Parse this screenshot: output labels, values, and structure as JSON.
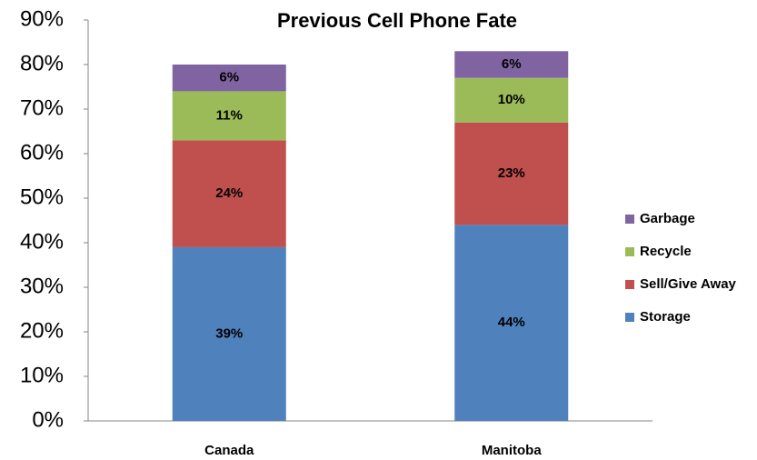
{
  "chart_data": {
    "type": "stacked-bar",
    "title": "Previous Cell Phone Fate",
    "categories": [
      "Canada",
      "Manitoba"
    ],
    "series": [
      {
        "name": "Storage",
        "color": "#4f81bd",
        "values": [
          39,
          44
        ],
        "value_labels": [
          "39%",
          "44%"
        ]
      },
      {
        "name": "Sell/Give Away",
        "color": "#c0504d",
        "values": [
          24,
          23
        ],
        "value_labels": [
          "24%",
          "23%"
        ]
      },
      {
        "name": "Recycle",
        "color": "#9bbb59",
        "values": [
          11,
          10
        ],
        "value_labels": [
          "11%",
          "10%"
        ]
      },
      {
        "name": "Garbage",
        "color": "#8064a2",
        "values": [
          6,
          6
        ],
        "value_labels": [
          "6%",
          "6%"
        ]
      }
    ],
    "ylim": [
      0,
      90
    ],
    "yticks": [
      {
        "value": 0,
        "label": "0%"
      },
      {
        "value": 10,
        "label": "10%"
      },
      {
        "value": 20,
        "label": "20%"
      },
      {
        "value": 30,
        "label": "30%"
      },
      {
        "value": 40,
        "label": "40%"
      },
      {
        "value": 50,
        "label": "50%"
      },
      {
        "value": 60,
        "label": "60%"
      },
      {
        "value": 70,
        "label": "70%"
      },
      {
        "value": 80,
        "label": "80%"
      },
      {
        "value": 90,
        "label": "90%"
      }
    ],
    "legend": "right"
  }
}
